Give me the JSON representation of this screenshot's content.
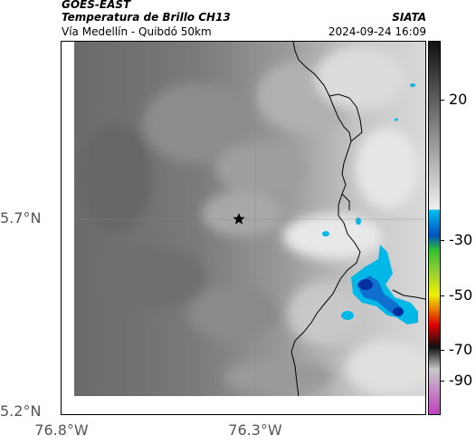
{
  "header": {
    "satellite": "GOES-EAST",
    "product": "Temperatura de Brillo CH13",
    "route": "Vía Medellín - Quibdó 50km",
    "agency": "SIATA",
    "datetime": "2024-09-24 16:09"
  },
  "map": {
    "lat_labels": [
      "5.7°N",
      "5.2°N"
    ],
    "lon_labels": [
      "76.8°W",
      "76.3°W"
    ],
    "marker": "star-marker"
  },
  "colorbar": {
    "labels": [
      "20",
      "-30",
      "-50",
      "-70",
      "-90"
    ],
    "colors": {
      "warm_gray": "#6e6e6e",
      "light_gray": "#e8e8e8",
      "cyan": "#00b8e8",
      "blue": "#0040b0",
      "green": "#30c030",
      "yellow": "#f0f000",
      "red": "#e00000",
      "black": "#101010",
      "magenta": "#c040c0"
    }
  }
}
